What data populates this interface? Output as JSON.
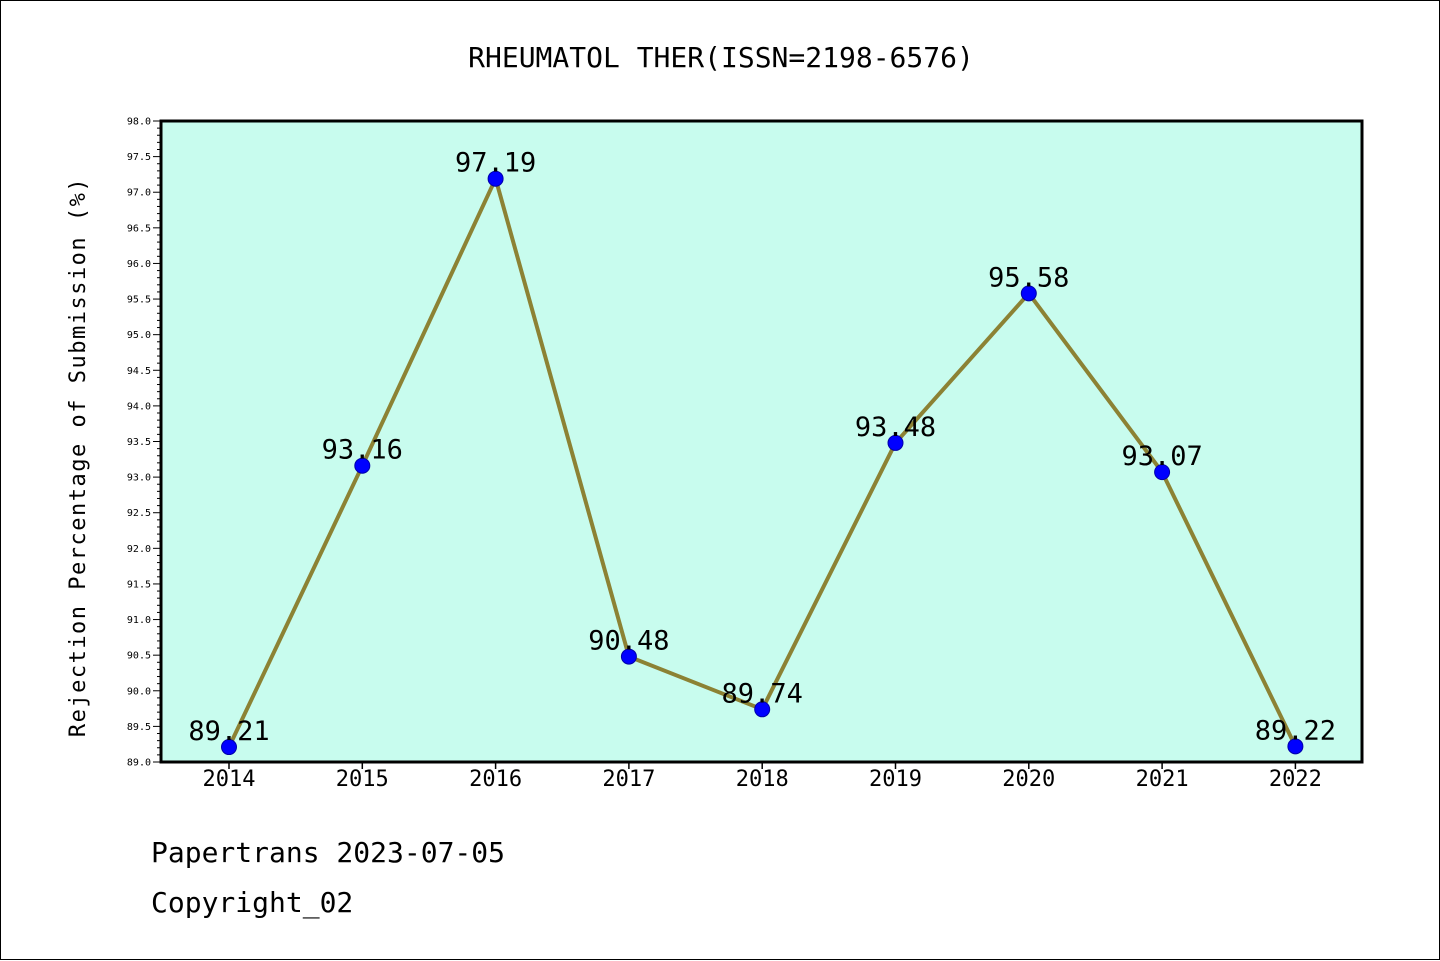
{
  "chart_data": {
    "type": "line",
    "title": "RHEUMATOL THER(ISSN=2198-6576)",
    "xlabel": "",
    "ylabel": "Rejection Percentage of Submission (%)",
    "categories": [
      "2014",
      "2015",
      "2016",
      "2017",
      "2018",
      "2019",
      "2020",
      "2021",
      "2022"
    ],
    "series": [
      {
        "values": [
          89.21,
          93.16,
          97.19,
          90.48,
          89.74,
          93.48,
          95.58,
          93.07,
          89.22
        ]
      }
    ],
    "data_labels": [
      "89.21",
      "93.16",
      "97.19",
      "90.48",
      "89.74",
      "93.48",
      "95.58",
      "93.07",
      "89.22"
    ],
    "ylim": [
      89.0,
      98.0
    ],
    "yticks": [
      "89.0",
      "89.5",
      "90.0",
      "90.5",
      "91.0",
      "91.5",
      "92.0",
      "92.5",
      "93.0",
      "93.5",
      "94.0",
      "94.5",
      "95.0",
      "95.5",
      "96.0",
      "96.5",
      "97.0",
      "97.5",
      "98.0"
    ],
    "grid": false,
    "colors": {
      "plot_background": "#c8fcee",
      "line": "#8c8234",
      "marker": "#0000ff"
    }
  },
  "footer": {
    "line1": "Papertrans 2023-07-05",
    "line2": "Copyright_02"
  }
}
